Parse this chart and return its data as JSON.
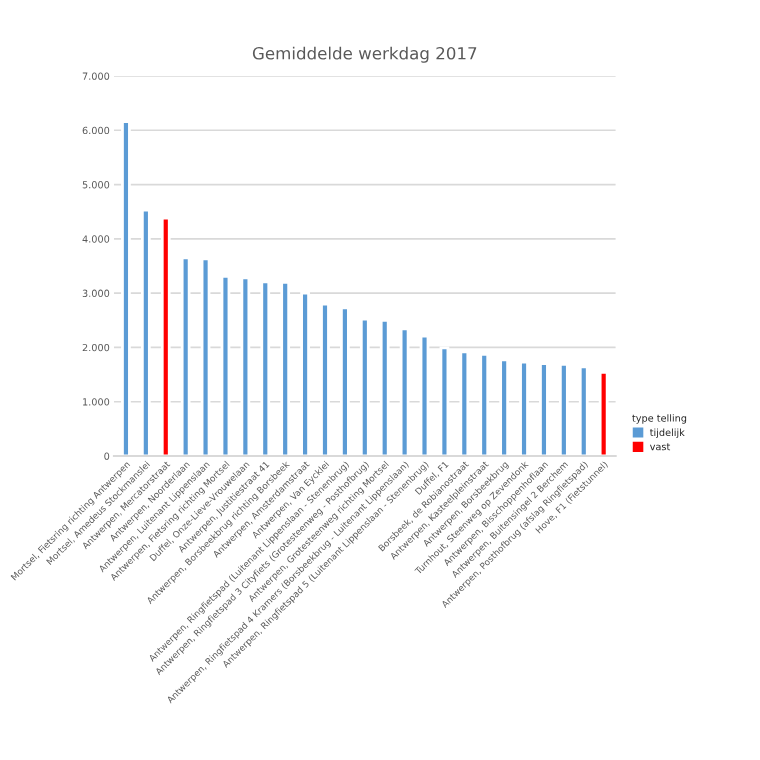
{
  "chart_data": {
    "type": "bar",
    "title": "Gemiddelde werkdag 2017",
    "categories": [
      "Mortsel, Fietsring richting Antwerpen",
      "Mortsel, Amedeus Stockmanslei",
      "Antwerpen, Mercatorstraat",
      "Antwerpen, Noorderlaan",
      "Antwerpen, Luitenant Lippenslaan",
      "Antwerpen, Fietsring richting Mortsel",
      "Duffel, Onze-Lieve-Vrouwelaan",
      "Antwerpen, Justitiestraat 41",
      "Antwerpen, Borsbeekbrug richting Borsbeek",
      "Antwerpen, Amsterdamstraat",
      "Antwerpen, Van Eycklei",
      "Antwerpen, Ringfietspad (Luitenant Lippenslaan - Stenenbrug)",
      "Antwerpen, Ringfietspad 3 Cityfiets (Grotesteenweg - Posthofbrug)",
      "Antwerpen, Grotesteenweg richting Mortsel",
      "Antwerpen, Ringfietspad 4 Kramers (Borsbeekbrug - Luitenant Lippenslaan)",
      "Antwerpen, Ringfietspad 5 (Luitenant Lippenslaan - Stenenbrug)",
      "Duffel, F1",
      "Borsbeek, de Robianostraat",
      "Antwerpen, Kasteelpleinstraat",
      "Antwerpen, Borsbeekbrug",
      "Turnhout, Steenweg op Zevendonk",
      "Antwerpen, Bisschoppenhoflaan",
      "Antwerpen, Buitensingel 2 Berchem",
      "Antwerpen, Posthofbrug (afslag Ringfietspad)",
      "Hove, F1 (Fietstunnel)"
    ],
    "series": [
      {
        "name": "tijdelijk",
        "color": "#5b9bd5",
        "values": [
          6160,
          4530,
          null,
          3650,
          3630,
          3310,
          3280,
          3210,
          3200,
          3000,
          2800,
          2730,
          2520,
          2500,
          2340,
          2210,
          1990,
          1920,
          1870,
          1770,
          1730,
          1700,
          1690,
          1640,
          null
        ]
      },
      {
        "name": "vast",
        "color": "#ff0000",
        "values": [
          null,
          null,
          4380,
          null,
          null,
          null,
          null,
          null,
          null,
          null,
          null,
          null,
          null,
          null,
          null,
          null,
          null,
          null,
          null,
          null,
          null,
          null,
          null,
          null,
          1540
        ]
      }
    ],
    "legend_title": "type telling",
    "ylim": [
      0,
      7000
    ],
    "yticks": [
      {
        "value": 0,
        "label": "0"
      },
      {
        "value": 1000,
        "label": "1.000"
      },
      {
        "value": 2000,
        "label": "2.000"
      },
      {
        "value": 3000,
        "label": "3.000"
      },
      {
        "value": 4000,
        "label": "4.000"
      },
      {
        "value": 5000,
        "label": "5.000"
      },
      {
        "value": 6000,
        "label": "6.000"
      },
      {
        "value": 7000,
        "label": "7.000"
      }
    ],
    "grid": "y",
    "legend": "right"
  }
}
